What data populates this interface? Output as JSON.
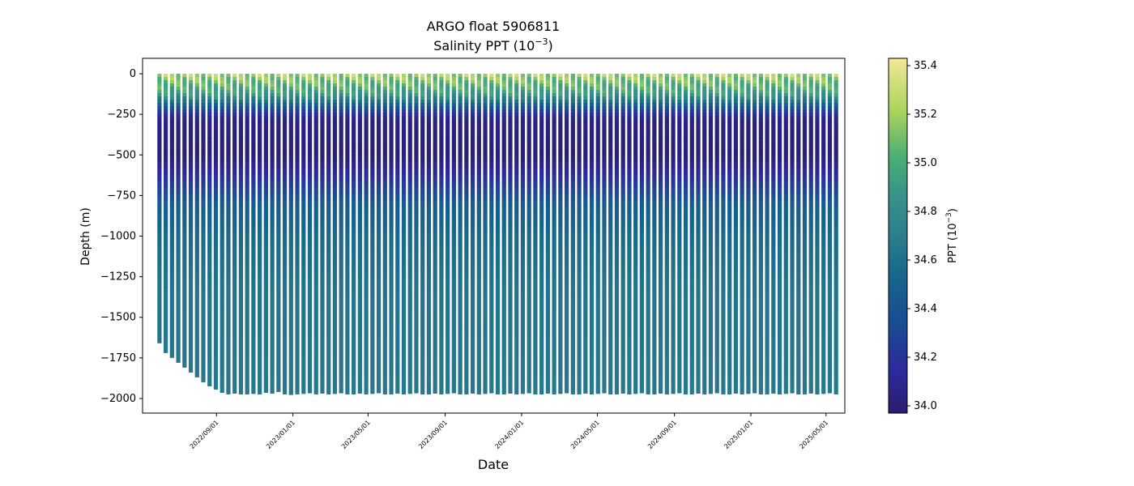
{
  "figure": {
    "title_line1": "ARGO float 5906811",
    "title_line2_prefix": "Salinity PPT (10",
    "title_line2_exp": "−3",
    "title_line2_suffix": ")"
  },
  "chart_data": {
    "type": "scatter",
    "title": "ARGO float 5906811",
    "subtitle": "Salinity PPT (10^-3)",
    "xlabel": "Date",
    "ylabel": "Depth (m)",
    "x_ticks": [
      "2022/09/01",
      "2023/01/01",
      "2023/05/01",
      "2023/09/01",
      "2024/01/01",
      "2024/05/01",
      "2024/09/01",
      "2025/01/01",
      "2025/05/01"
    ],
    "y_ticks": [
      0,
      -250,
      -500,
      -750,
      -1000,
      -1250,
      -1500,
      -1750,
      -2000
    ],
    "y_tick_labels": [
      "0",
      "−250",
      "−500",
      "−750",
      "−1000",
      "−1250",
      "−1500",
      "−1750",
      "−2000"
    ],
    "xlim": [
      "2022/05/06",
      "2025/05/31"
    ],
    "ylim": [
      -2090,
      95
    ],
    "grid": false,
    "colorbar": {
      "label_prefix": "PPT (10",
      "label_exp": "−3",
      "label_suffix": ")",
      "colormap": "haline",
      "range": [
        33.97,
        35.43
      ],
      "ticks": [
        34.0,
        34.2,
        34.4,
        34.6,
        34.8,
        35.0,
        35.2,
        35.4
      ],
      "tick_labels": [
        "34.0",
        "34.2",
        "34.4",
        "34.6",
        "34.8",
        "35.0",
        "35.2",
        "35.4"
      ],
      "colors": [
        "#2a1d6e",
        "#2c2a9c",
        "#1b4a93",
        "#16658b",
        "#2c7e8c",
        "#399389",
        "#4aae75",
        "#a9d35d",
        "#f3e79a"
      ]
    },
    "profiles": {
      "first_date": "2022/06/02",
      "last_date": "2025/05/17",
      "interval_days": 10,
      "max_depths": [
        -1660,
        -1720,
        -1750,
        -1780,
        -1810,
        -1840,
        -1870,
        -1900,
        -1925,
        -1945,
        -1965,
        -1975,
        -1970,
        -1975,
        -1975,
        -1972,
        -1975,
        -1965,
        -1970,
        -1960,
        -1975,
        -1978,
        -1975,
        -1972,
        -1968,
        -1975,
        -1970,
        -1975,
        -1972,
        -1968,
        -1975,
        -1975,
        -1970,
        -1975,
        -1972,
        -1968,
        -1975,
        -1975,
        -1970,
        -1975,
        -1972,
        -1968,
        -1975,
        -1975,
        -1970,
        -1975,
        -1972,
        -1968,
        -1975,
        -1975,
        -1970,
        -1975,
        -1972,
        -1968,
        -1975,
        -1975,
        -1970,
        -1975,
        -1972,
        -1968,
        -1975,
        -1975,
        -1970,
        -1975,
        -1972,
        -1968,
        -1975,
        -1975,
        -1970,
        -1975,
        -1972,
        -1968,
        -1975,
        -1975,
        -1970,
        -1975,
        -1972,
        -1968,
        -1975,
        -1975,
        -1970,
        -1975,
        -1972,
        -1968,
        -1975,
        -1975,
        -1970,
        -1975,
        -1972,
        -1968,
        -1975,
        -1975,
        -1970,
        -1975,
        -1972,
        -1968,
        -1975,
        -1975,
        -1970,
        -1975,
        -1972,
        -1968,
        -1975,
        -1975,
        -1970,
        -1975,
        -1972,
        -1968,
        -1975
      ],
      "salinity_profile": [
        {
          "depth": 0,
          "value": 35.25
        },
        {
          "depth": -60,
          "value": 35.1
        },
        {
          "depth": -120,
          "value": 34.95
        },
        {
          "depth": -170,
          "value": 34.6
        },
        {
          "depth": -220,
          "value": 34.3
        },
        {
          "depth": -280,
          "value": 34.05
        },
        {
          "depth": -500,
          "value": 34.0
        },
        {
          "depth": -650,
          "value": 34.2
        },
        {
          "depth": -800,
          "value": 34.45
        },
        {
          "depth": -1000,
          "value": 34.55
        },
        {
          "depth": -1300,
          "value": 34.62
        },
        {
          "depth": -2000,
          "value": 34.66
        }
      ]
    }
  }
}
